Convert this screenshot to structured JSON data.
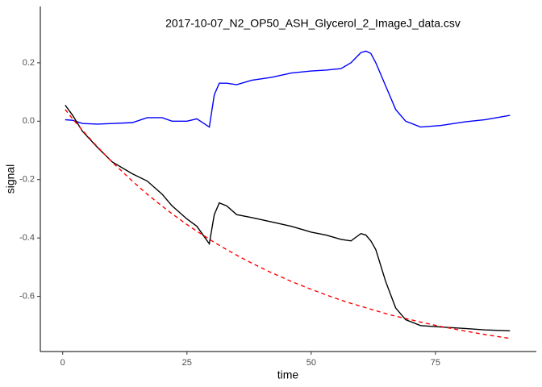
{
  "chart_data": {
    "type": "line",
    "title": "2017-10-07_N2_OP50_ASH_Glycerol_2_ImageJ_data.csv",
    "x_label": "time",
    "y_label": "signal",
    "x": [
      0.5,
      2,
      4,
      7,
      10,
      14,
      17,
      20,
      22,
      25,
      27,
      29.5,
      30.5,
      31.5,
      33,
      35,
      38,
      42,
      46,
      50,
      53,
      56,
      58,
      60,
      61,
      62,
      63,
      65,
      67,
      69,
      72,
      76,
      81,
      85,
      90
    ],
    "series": [
      {
        "color": "#0000ff",
        "dash": "solid",
        "values": [
          0.005,
          0.003,
          -0.008,
          -0.01,
          -0.008,
          -0.005,
          0.012,
          0.012,
          0.0,
          0.0,
          0.008,
          -0.02,
          0.09,
          0.13,
          0.13,
          0.125,
          0.14,
          0.15,
          0.165,
          0.172,
          0.175,
          0.18,
          0.2,
          0.235,
          0.24,
          0.232,
          0.2,
          0.12,
          0.04,
          0.0,
          -0.02,
          -0.015,
          -0.002,
          0.005,
          0.02
        ]
      },
      {
        "color": "#000000",
        "dash": "solid",
        "values": [
          0.055,
          0.02,
          -0.035,
          -0.09,
          -0.14,
          -0.18,
          -0.205,
          -0.25,
          -0.29,
          -0.335,
          -0.36,
          -0.42,
          -0.32,
          -0.28,
          -0.29,
          -0.32,
          -0.33,
          -0.345,
          -0.36,
          -0.38,
          -0.39,
          -0.405,
          -0.41,
          -0.385,
          -0.39,
          -0.41,
          -0.44,
          -0.55,
          -0.64,
          -0.68,
          -0.7,
          -0.705,
          -0.71,
          -0.715,
          -0.718
        ]
      },
      {
        "color": "#ff0000",
        "dash": "dashed",
        "values": [
          0.04,
          0.008,
          -0.032,
          -0.088,
          -0.141,
          -0.205,
          -0.25,
          -0.291,
          -0.317,
          -0.354,
          -0.377,
          -0.404,
          -0.415,
          -0.425,
          -0.44,
          -0.459,
          -0.486,
          -0.519,
          -0.549,
          -0.576,
          -0.595,
          -0.613,
          -0.624,
          -0.634,
          -0.639,
          -0.644,
          -0.649,
          -0.659,
          -0.668,
          -0.676,
          -0.688,
          -0.703,
          -0.719,
          -0.731,
          -0.744
        ]
      }
    ],
    "xlim": [
      -4.5,
      95.3
    ],
    "xticks": [
      0,
      25,
      50,
      75
    ],
    "ylim": [
      -0.789,
      0.393
    ],
    "yticks": [
      0.2,
      {
        "value": 0,
        "label": "0.0"
      },
      -0.2,
      -0.4,
      -0.6
    ],
    "grid": false
  }
}
